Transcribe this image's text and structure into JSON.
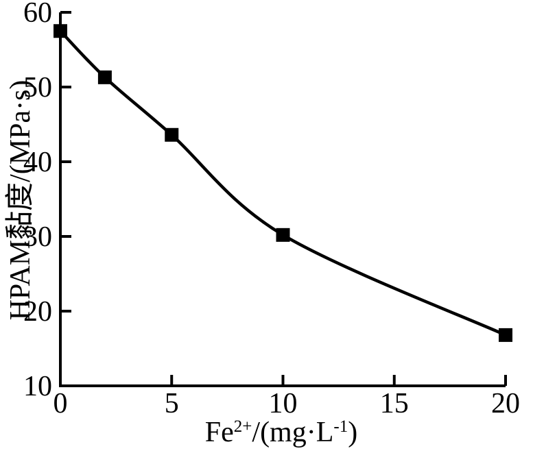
{
  "figure": {
    "background_color": "#ffffff",
    "ink_color": "#000000"
  },
  "chart_data": {
    "type": "line",
    "title": "",
    "ylabel": "HPAM黏度/(MPa·s)",
    "xlabel_plain": "Fe2+/(mg·L-1)",
    "xlabel_parts": {
      "base": "Fe",
      "sup1": "2+",
      "mid": "/(mg·L",
      "sup2": "-1",
      "end": ")"
    },
    "x": [
      0,
      2,
      5,
      10,
      20
    ],
    "y": [
      57.5,
      51.3,
      43.6,
      30.2,
      16.8
    ],
    "xlim": [
      0,
      20
    ],
    "ylim": [
      10,
      60
    ],
    "xticks": [
      0,
      5,
      10,
      15,
      20
    ],
    "yticks": [
      10,
      20,
      30,
      40,
      50,
      60
    ],
    "xtick_labels": [
      "0",
      "5",
      "10",
      "15",
      "20"
    ],
    "ytick_labels": [
      "10",
      "20",
      "30",
      "40",
      "50",
      "60"
    ],
    "marker": "filled-square",
    "line_color": "#000000",
    "marker_color": "#000000",
    "grid": false,
    "legend": null
  }
}
